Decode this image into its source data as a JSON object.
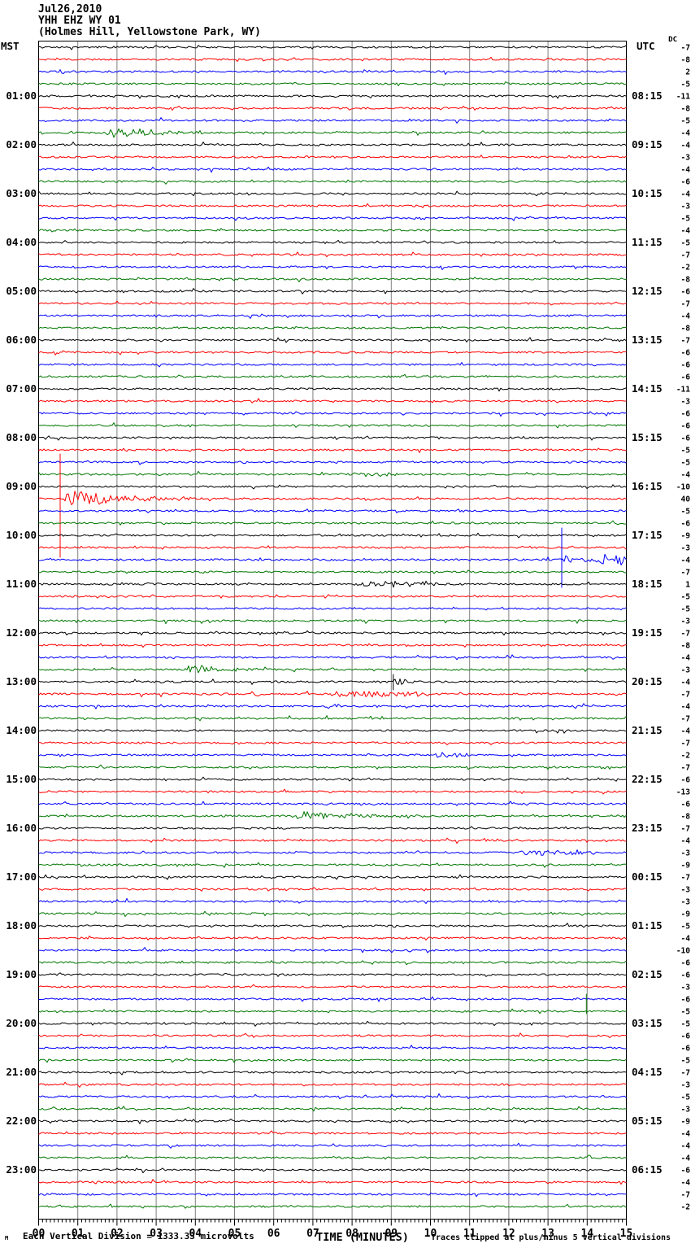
{
  "header": {
    "date": "Jul26,2010",
    "station": "YHH EHZ WY 01",
    "location": "(Holmes Hill, Yellowstone Park, WY)"
  },
  "axes": {
    "left_title": "MST",
    "right_title": "UTC",
    "dc_title": "DC",
    "x_title": "TIME (MINUTES)"
  },
  "footer": {
    "left_glyph": "M",
    "scale_note": "Each Vertical Division = 1333.33 microvolts",
    "clip_note": "Traces clipped at plus/minus 5 vertical divisions"
  },
  "chart_data": {
    "type": "line",
    "subtype": "seismic_helicorder",
    "title": "YHH EHZ WY 01 (Holmes Hill, Yellowstone Park, WY) Jul26,2010",
    "minutes_per_line": 15,
    "num_lines": 96,
    "x_ticks": [
      "00",
      "01",
      "02",
      "03",
      "04",
      "05",
      "06",
      "07",
      "08",
      "09",
      "10",
      "11",
      "12",
      "13",
      "14",
      "15"
    ],
    "trace_color_cycle": [
      "#000000",
      "#ff0000",
      "#0000ff",
      "#007700"
    ],
    "grid_color": "#808080",
    "hour_label_first_row": 4,
    "hour_label_row_step": 4,
    "left_time_labels": [
      "01:00",
      "02:00",
      "03:00",
      "04:00",
      "05:00",
      "06:00",
      "07:00",
      "08:00",
      "09:00",
      "10:00",
      "11:00",
      "12:00",
      "13:00",
      "14:00",
      "15:00",
      "16:00",
      "17:00",
      "18:00",
      "19:00",
      "20:00",
      "21:00",
      "22:00",
      "23:00"
    ],
    "right_time_labels": [
      "08:15",
      "09:15",
      "10:15",
      "11:15",
      "12:15",
      "13:15",
      "14:15",
      "15:15",
      "16:15",
      "17:15",
      "18:15",
      "19:15",
      "20:15",
      "21:15",
      "22:15",
      "23:15",
      "00:15",
      "01:15",
      "02:15",
      "03:15",
      "04:15",
      "05:15",
      "06:15"
    ],
    "dc_offsets": [
      -7,
      -8,
      2,
      -5,
      -11,
      -8,
      -5,
      -4,
      -4,
      -3,
      -4,
      -6,
      -4,
      -3,
      -5,
      -4,
      -5,
      -7,
      -2,
      -8,
      -6,
      -7,
      -4,
      -8,
      -7,
      -6,
      -6,
      -6,
      -11,
      -3,
      -6,
      -6,
      -6,
      -5,
      -5,
      -4,
      -10,
      40,
      -5,
      -6,
      -9,
      -3,
      -4,
      -7,
      1,
      -5,
      -5,
      -3,
      -7,
      -8,
      -4,
      -3,
      -4,
      -7,
      -4,
      -7,
      -4,
      -7,
      -2,
      -7,
      -6,
      -13,
      -6,
      -8,
      -7,
      -4,
      -3,
      -9,
      -7,
      -3,
      -3,
      -9,
      -5,
      -4,
      -10,
      -6,
      -6,
      -3,
      -6,
      -5,
      -5,
      -6,
      -6,
      -5,
      -7,
      -3,
      -5,
      -3,
      -9,
      -4,
      -4,
      -4,
      -6,
      -4,
      -7,
      -2
    ],
    "events": [
      {
        "row": 7,
        "type": "quake",
        "start": 1.7,
        "end": 5.5,
        "amp": 8,
        "note": "green burst 01:45 MST"
      },
      {
        "row": 35,
        "type": "fuzz",
        "start": 7.8,
        "end": 9.3,
        "amp": 2,
        "note": "small green fuzz 08:45 MST"
      },
      {
        "row": 37,
        "type": "quake",
        "start": 0.55,
        "end": 4.2,
        "amp": 14,
        "spike": {
          "min": 0.55,
          "up": 55,
          "down": 72
        },
        "note": "large clipped red event 09:15 MST"
      },
      {
        "row": 42,
        "type": "packets",
        "start": 13.38,
        "end": 15.0,
        "amp": 5.5,
        "spike": {
          "min": 13.35,
          "up": 39,
          "down": 34
        },
        "note": "blue event with sharp onset 10:30 MST"
      },
      {
        "row": 44,
        "type": "fuzz",
        "start": 8.0,
        "end": 10.4,
        "amp": 3,
        "note": "black fuzz 11:00 MST"
      },
      {
        "row": 51,
        "type": "quake",
        "start": 3.6,
        "end": 6.8,
        "amp": 7,
        "note": "green burst 12:45 MST"
      },
      {
        "row": 52,
        "type": "quake",
        "start": 9.02,
        "end": 9.9,
        "amp": 8,
        "spike": {
          "min": 9.05,
          "up": 9,
          "down": 10
        },
        "note": "black spike 13:00 MST"
      },
      {
        "row": 53,
        "type": "fuzz",
        "start": 7.2,
        "end": 10.3,
        "amp": 3,
        "note": "red fuzz 13:15 MST"
      },
      {
        "row": 53,
        "type": "fuzz",
        "start": 5.5,
        "end": 5.75,
        "amp": 3.5,
        "note": "small red blip 13:15 MST"
      },
      {
        "row": 54,
        "type": "fuzz",
        "start": 7.1,
        "end": 7.7,
        "amp": 2,
        "note": "tiny blue fuzz 13:30 MST"
      },
      {
        "row": 58,
        "type": "fuzz",
        "start": 9.9,
        "end": 11.1,
        "amp": 2.5,
        "note": "blue fuzz 14:30 MST"
      },
      {
        "row": 63,
        "type": "quake",
        "start": 6.45,
        "end": 10.2,
        "amp": 8,
        "note": "green burst 15:45 MST"
      },
      {
        "row": 66,
        "type": "fuzz",
        "start": 12.1,
        "end": 14.3,
        "amp": 3,
        "note": "blue fuzz 16:30 MST"
      },
      {
        "row": 79,
        "type": "upspike",
        "spike": {
          "min": 13.98,
          "up": 21,
          "down": 3
        },
        "note": "green up-spike 19:45 MST"
      }
    ]
  }
}
